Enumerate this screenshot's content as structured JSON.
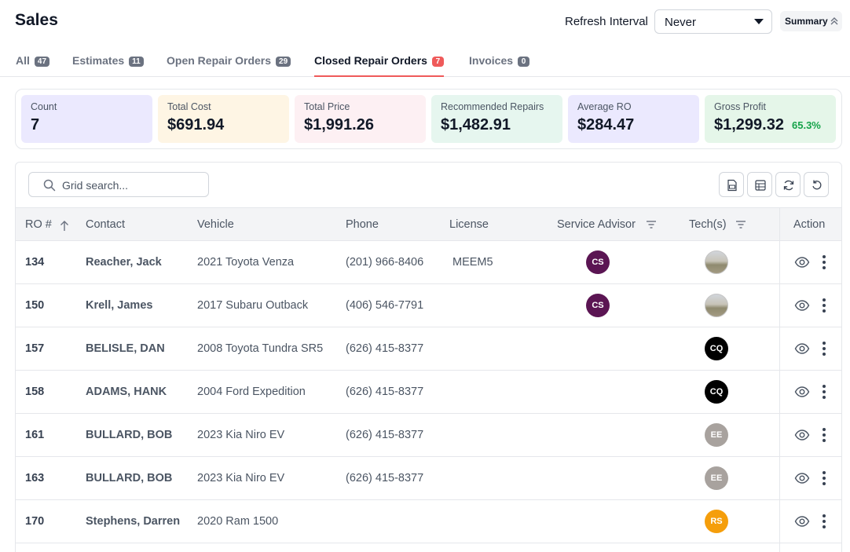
{
  "header": {
    "title": "Sales",
    "refresh_label": "Refresh Interval",
    "refresh_value": "Never",
    "summary_label": "Summary"
  },
  "tabs": [
    {
      "label": "All",
      "count": "47",
      "active": false
    },
    {
      "label": "Estimates",
      "count": "11",
      "active": false
    },
    {
      "label": "Open Repair Orders",
      "count": "29",
      "active": false
    },
    {
      "label": "Closed Repair Orders",
      "count": "7",
      "active": true
    },
    {
      "label": "Invoices",
      "count": "0",
      "active": false
    }
  ],
  "kpis": [
    {
      "label": "Count",
      "value": "7",
      "bg": "#ebe9fe"
    },
    {
      "label": "Total Cost",
      "value": "$691.94",
      "bg": "#fef5e4"
    },
    {
      "label": "Total Price",
      "value": "$1,991.26",
      "bg": "#fdf0f3"
    },
    {
      "label": "Recommended Repairs",
      "value": "$1,482.91",
      "bg": "#e6f6ef"
    },
    {
      "label": "Average RO",
      "value": "$284.47",
      "bg": "#ebe9fe"
    },
    {
      "label": "Gross Profit",
      "value": "$1,299.32",
      "pct": "65.3%",
      "bg": "#e5f6e9"
    }
  ],
  "search": {
    "placeholder": "Grid search..."
  },
  "toolbar": {
    "icons": [
      "pdf-icon",
      "spreadsheet-icon",
      "refresh-icon",
      "undo-icon"
    ]
  },
  "columns": {
    "ro": "RO #",
    "contact": "Contact",
    "vehicle": "Vehicle",
    "phone": "Phone",
    "license": "License",
    "advisor": "Service Advisor",
    "techs": "Tech(s)",
    "action": "Action"
  },
  "colors": {
    "accent": "#ef5a5a",
    "advisor_cs": "#5b1553",
    "tech_cq": "#000000",
    "tech_ee": "#a8a29e",
    "tech_rs": "#f59e0b",
    "gross_profit_pct": "#16a34a"
  },
  "rows": [
    {
      "ro": "134",
      "contact": "Reacher, Jack",
      "vehicle": "2021 Toyota Venza",
      "phone": "(201) 966-8406",
      "license": "MEEM5",
      "advisor": "CS",
      "advisor_color": "#5b1553",
      "tech": "",
      "tech_color": "photo"
    },
    {
      "ro": "150",
      "contact": "Krell, James",
      "vehicle": "2017 Subaru Outback",
      "phone": "(406) 546-7791",
      "license": "",
      "advisor": "CS",
      "advisor_color": "#5b1553",
      "tech": "",
      "tech_color": "photo"
    },
    {
      "ro": "157",
      "contact": "BELISLE, DAN",
      "vehicle": "2008 Toyota Tundra SR5",
      "phone": "(626) 415-8377",
      "license": "",
      "advisor": "",
      "advisor_color": "",
      "tech": "CQ",
      "tech_color": "#000000"
    },
    {
      "ro": "158",
      "contact": "ADAMS, HANK",
      "vehicle": "2004 Ford Expedition",
      "phone": "(626) 415-8377",
      "license": "",
      "advisor": "",
      "advisor_color": "",
      "tech": "CQ",
      "tech_color": "#000000"
    },
    {
      "ro": "161",
      "contact": "BULLARD, BOB",
      "vehicle": "2023 Kia Niro EV",
      "phone": "(626) 415-8377",
      "license": "",
      "advisor": "",
      "advisor_color": "",
      "tech": "EE",
      "tech_color": "#a8a29e"
    },
    {
      "ro": "163",
      "contact": "BULLARD, BOB",
      "vehicle": "2023 Kia Niro EV",
      "phone": "(626) 415-8377",
      "license": "",
      "advisor": "",
      "advisor_color": "",
      "tech": "EE",
      "tech_color": "#a8a29e"
    },
    {
      "ro": "170",
      "contact": "Stephens, Darren",
      "vehicle": "2020 Ram 1500",
      "phone": "",
      "license": "",
      "advisor": "",
      "advisor_color": "",
      "tech": "RS",
      "tech_color": "#f59e0b"
    }
  ]
}
